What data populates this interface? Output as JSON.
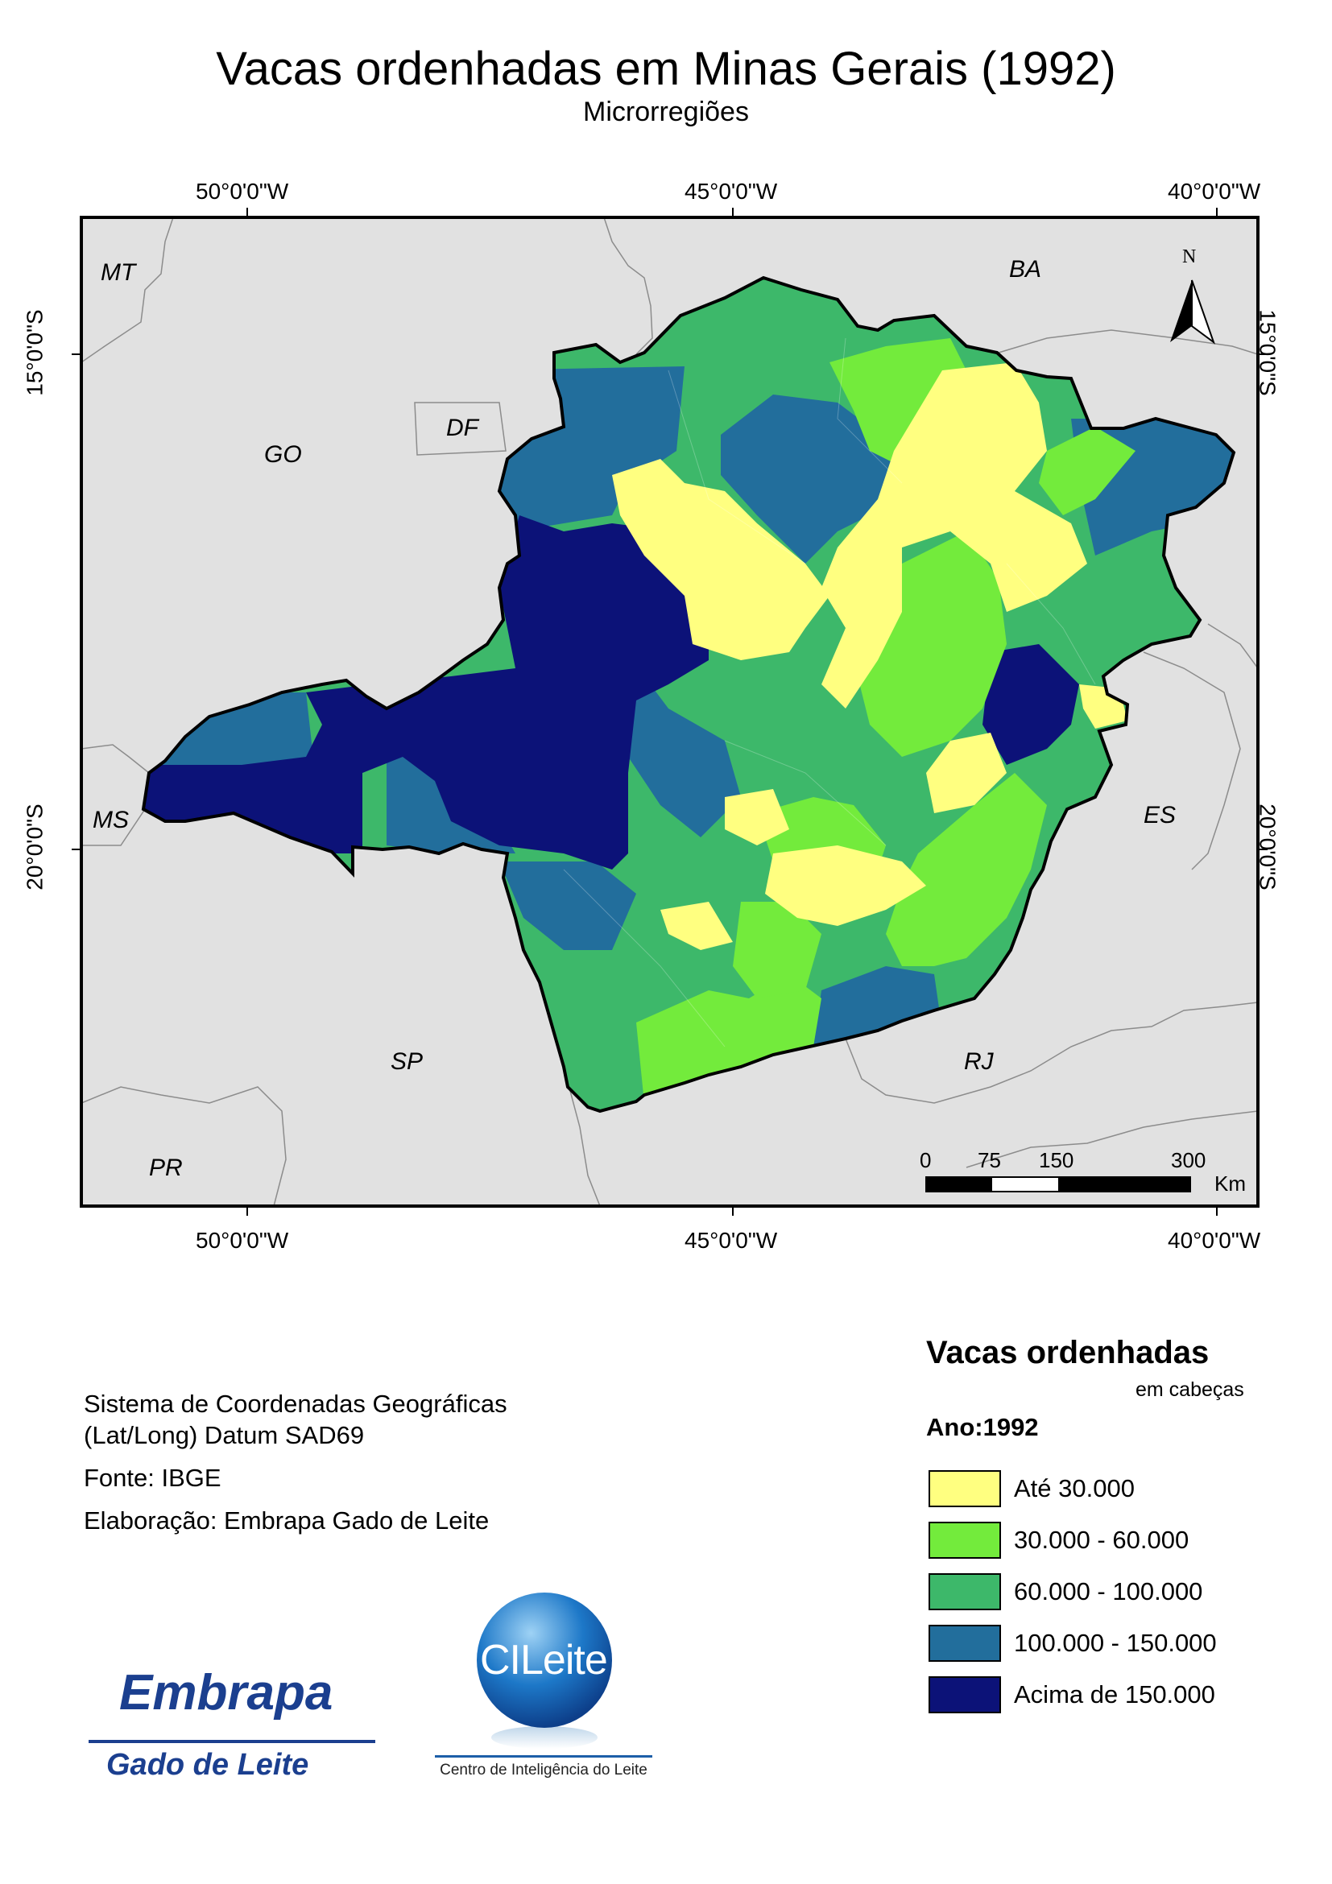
{
  "title": "Vacas ordenhadas em Minas Gerais (1992)",
  "subtitle": "Microrregiões",
  "graticule": {
    "longitudes": [
      "50°0'0\"W",
      "45°0'0\"W",
      "40°0'0\"W"
    ],
    "latitudes": [
      "15°0'0\"S",
      "20°0'0\"S"
    ]
  },
  "neighbors": [
    "MT",
    "BA",
    "GO",
    "DF",
    "MS",
    "ES",
    "SP",
    "RJ",
    "PR"
  ],
  "north_arrow": "N",
  "scale_bar": {
    "ticks": [
      "0",
      "75",
      "150",
      "300"
    ],
    "unit": "Km"
  },
  "info": {
    "crs_line1": "Sistema de Coordenadas Geográficas",
    "crs_line2": "(Lat/Long) Datum SAD69",
    "source": "Fonte: IBGE",
    "author": "Elaboração: Embrapa Gado de Leite"
  },
  "legend": {
    "title": "Vacas ordenhadas",
    "unit": "em cabeças",
    "year": "Ano:1992",
    "classes": [
      {
        "label": "Até 30.000",
        "color": "#FFFF80"
      },
      {
        "label": "30.000 - 60.000",
        "color": "#73EB3C"
      },
      {
        "label": "60.000 - 100.000",
        "color": "#3DB86A"
      },
      {
        "label": "100.000 - 150.000",
        "color": "#226E9C"
      },
      {
        "label": "Acima de 150.000",
        "color": "#0C1278"
      }
    ]
  },
  "logos": {
    "embrapa": {
      "name": "Embrapa",
      "unit": "Gado de Leite"
    },
    "cileite": {
      "name": "CILeite",
      "caption": "Centro de Inteligência do Leite"
    }
  }
}
